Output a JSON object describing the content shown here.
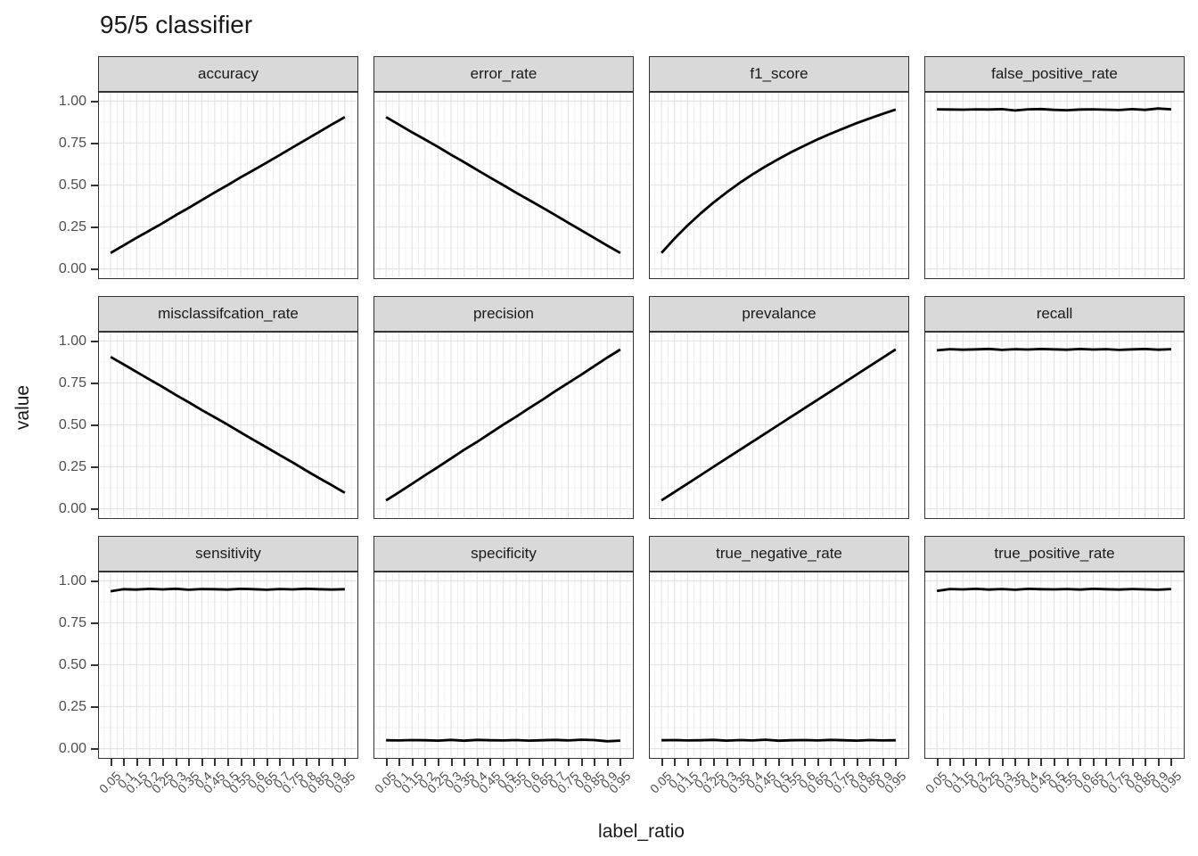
{
  "title": "95/5 classifier",
  "axes": {
    "y_label": "value",
    "x_label": "label_ratio",
    "y_ticks": [
      "1.00",
      "0.75",
      "0.50",
      "0.25",
      "0.00"
    ],
    "y_tick_values": [
      1.0,
      0.75,
      0.5,
      0.25,
      0.0
    ],
    "x_ticks": [
      "0.05",
      "0.1",
      "0.15",
      "0.2",
      "0.25",
      "0.3",
      "0.35",
      "0.4",
      "0.45",
      "0.5",
      "0.55",
      "0.6",
      "0.65",
      "0.7",
      "0.75",
      "0.8",
      "0.85",
      "0.9",
      "0.95"
    ]
  },
  "colors": {
    "line": "#000000",
    "strip_bg": "#d9d9d9",
    "panel_border": "#333333",
    "grid_major": "#e4e4e4",
    "grid_minor": "#f2f2f2",
    "tick_text": "#4d4d4d",
    "text": "#1a1a1a"
  },
  "chart_data": {
    "type": "line",
    "title": "95/5 classifier",
    "xlabel": "label_ratio",
    "ylabel": "value",
    "ylim": [
      0,
      1
    ],
    "grid": true,
    "legend": "none",
    "facet_layout": {
      "rows": 3,
      "cols": 4
    },
    "x": [
      0.05,
      0.1,
      0.15,
      0.2,
      0.25,
      0.3,
      0.35,
      0.4,
      0.45,
      0.5,
      0.55,
      0.6,
      0.65,
      0.7,
      0.75,
      0.8,
      0.85,
      0.9,
      0.95
    ],
    "facets": [
      {
        "label": "accuracy",
        "values": [
          0.095,
          0.14,
          0.186,
          0.229,
          0.273,
          0.32,
          0.364,
          0.41,
          0.456,
          0.5,
          0.546,
          0.59,
          0.634,
          0.679,
          0.725,
          0.77,
          0.815,
          0.861,
          0.905
        ]
      },
      {
        "label": "error_rate",
        "values": [
          0.905,
          0.86,
          0.814,
          0.771,
          0.727,
          0.68,
          0.636,
          0.59,
          0.544,
          0.5,
          0.454,
          0.41,
          0.366,
          0.321,
          0.275,
          0.23,
          0.185,
          0.139,
          0.095
        ]
      },
      {
        "label": "f1_score",
        "values": [
          0.095,
          0.181,
          0.259,
          0.33,
          0.396,
          0.456,
          0.512,
          0.563,
          0.611,
          0.655,
          0.697,
          0.735,
          0.772,
          0.806,
          0.838,
          0.869,
          0.897,
          0.924,
          0.95
        ]
      },
      {
        "label": "false_positive_rate",
        "values": [
          0.951,
          0.95,
          0.949,
          0.951,
          0.95,
          0.952,
          0.944,
          0.951,
          0.953,
          0.948,
          0.946,
          0.95,
          0.951,
          0.949,
          0.947,
          0.952,
          0.948,
          0.956,
          0.951
        ]
      },
      {
        "label": "misclassifcation_rate",
        "values": [
          0.905,
          0.861,
          0.815,
          0.77,
          0.726,
          0.679,
          0.635,
          0.589,
          0.545,
          0.501,
          0.455,
          0.409,
          0.365,
          0.32,
          0.276,
          0.229,
          0.184,
          0.14,
          0.095
        ]
      },
      {
        "label": "precision",
        "values": [
          0.05,
          0.098,
          0.149,
          0.2,
          0.249,
          0.3,
          0.352,
          0.399,
          0.45,
          0.501,
          0.549,
          0.6,
          0.649,
          0.701,
          0.75,
          0.799,
          0.85,
          0.901,
          0.949
        ]
      },
      {
        "label": "prevalance",
        "values": [
          0.05,
          0.1,
          0.15,
          0.2,
          0.25,
          0.3,
          0.35,
          0.4,
          0.45,
          0.5,
          0.55,
          0.6,
          0.65,
          0.7,
          0.75,
          0.8,
          0.85,
          0.9,
          0.95
        ]
      },
      {
        "label": "recall",
        "values": [
          0.944,
          0.951,
          0.948,
          0.95,
          0.953,
          0.947,
          0.951,
          0.949,
          0.952,
          0.95,
          0.948,
          0.952,
          0.949,
          0.951,
          0.947,
          0.95,
          0.952,
          0.948,
          0.951
        ]
      },
      {
        "label": "sensitivity",
        "values": [
          0.938,
          0.95,
          0.948,
          0.952,
          0.949,
          0.953,
          0.947,
          0.951,
          0.95,
          0.948,
          0.952,
          0.95,
          0.947,
          0.951,
          0.949,
          0.953,
          0.95,
          0.948,
          0.95
        ]
      },
      {
        "label": "specificity",
        "values": [
          0.05,
          0.049,
          0.051,
          0.05,
          0.048,
          0.052,
          0.047,
          0.052,
          0.05,
          0.049,
          0.051,
          0.048,
          0.05,
          0.052,
          0.049,
          0.053,
          0.051,
          0.044,
          0.048
        ]
      },
      {
        "label": "true_negative_rate",
        "values": [
          0.05,
          0.051,
          0.049,
          0.05,
          0.052,
          0.048,
          0.051,
          0.049,
          0.053,
          0.047,
          0.05,
          0.051,
          0.049,
          0.052,
          0.05,
          0.048,
          0.051,
          0.049,
          0.05
        ]
      },
      {
        "label": "true_positive_rate",
        "values": [
          0.94,
          0.951,
          0.949,
          0.952,
          0.948,
          0.951,
          0.947,
          0.952,
          0.95,
          0.949,
          0.951,
          0.948,
          0.952,
          0.95,
          0.948,
          0.951,
          0.949,
          0.947,
          0.951
        ]
      }
    ]
  }
}
